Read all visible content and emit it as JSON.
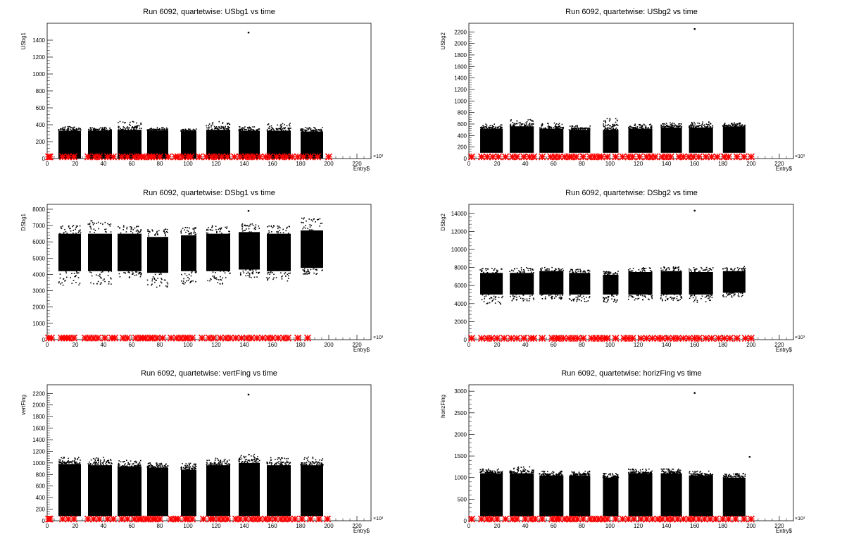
{
  "chart_data": [
    {
      "type": "scatter",
      "title": "Run 6092, quartetwise: USbg1 vs time",
      "ylabel": "USbg1",
      "xlabel": "Entry$",
      "x_multiplier": "×10³",
      "xlim": [
        0,
        230
      ],
      "ylim": [
        0,
        1600
      ],
      "xticks": [
        0,
        20,
        40,
        60,
        80,
        100,
        120,
        140,
        160,
        180,
        200,
        220
      ],
      "yticks": [
        0,
        200,
        400,
        600,
        800,
        1000,
        1200,
        1400
      ],
      "clusters": [
        {
          "x": [
            8,
            24
          ],
          "y": [
            0,
            330
          ],
          "outlier_max": 380
        },
        {
          "x": [
            29,
            46
          ],
          "y": [
            0,
            330
          ],
          "outlier_max": 370
        },
        {
          "x": [
            50,
            67
          ],
          "y": [
            0,
            340
          ],
          "outlier_max": 440
        },
        {
          "x": [
            71,
            86
          ],
          "y": [
            0,
            330
          ],
          "outlier_max": 370
        },
        {
          "x": [
            95,
            106
          ],
          "y": [
            0,
            320
          ],
          "outlier_max": 350
        },
        {
          "x": [
            113,
            130
          ],
          "y": [
            0,
            340
          ],
          "outlier_max": 440
        },
        {
          "x": [
            136,
            151
          ],
          "y": [
            0,
            330
          ],
          "outlier_max": 380
        },
        {
          "x": [
            156,
            173
          ],
          "y": [
            0,
            330
          ],
          "outlier_max": 420
        },
        {
          "x": [
            180,
            196
          ],
          "y": [
            0,
            320
          ],
          "outlier_max": 370
        }
      ],
      "outliers": [
        {
          "x": 143,
          "y": 1490
        }
      ],
      "red_markers_x": [
        1,
        2,
        11,
        15,
        19,
        29,
        34,
        37,
        43,
        47,
        53,
        57,
        62,
        65,
        67,
        69,
        72,
        74,
        76,
        80,
        86,
        91,
        93,
        96,
        100,
        102,
        108,
        113,
        117,
        120,
        124,
        128,
        133,
        137,
        141,
        144,
        147,
        151,
        155,
        158,
        163,
        167,
        170,
        174,
        178,
        182,
        187,
        192,
        200
      ],
      "red_marker_y": 20
    },
    {
      "type": "scatter",
      "title": "Run 6092, quartetwise: USbg2 vs time",
      "ylabel": "USbg2",
      "xlabel": "Entry$",
      "x_multiplier": "×10³",
      "xlim": [
        0,
        230
      ],
      "ylim": [
        0,
        2350
      ],
      "xticks": [
        0,
        20,
        40,
        60,
        80,
        100,
        120,
        140,
        160,
        180,
        200,
        220
      ],
      "yticks": [
        0,
        200,
        400,
        600,
        800,
        1000,
        1200,
        1400,
        1600,
        1800,
        2000,
        2200
      ],
      "clusters": [
        {
          "x": [
            8,
            24
          ],
          "y": [
            100,
            520
          ],
          "outlier_max": 600
        },
        {
          "x": [
            29,
            46
          ],
          "y": [
            100,
            560
          ],
          "outlier_max": 680
        },
        {
          "x": [
            50,
            67
          ],
          "y": [
            100,
            520
          ],
          "outlier_max": 620
        },
        {
          "x": [
            71,
            86
          ],
          "y": [
            100,
            500
          ],
          "outlier_max": 580
        },
        {
          "x": [
            95,
            106
          ],
          "y": [
            100,
            500
          ],
          "outlier_max": 700
        },
        {
          "x": [
            113,
            130
          ],
          "y": [
            100,
            520
          ],
          "outlier_max": 600
        },
        {
          "x": [
            136,
            151
          ],
          "y": [
            100,
            540
          ],
          "outlier_max": 620
        },
        {
          "x": [
            156,
            173
          ],
          "y": [
            100,
            540
          ],
          "outlier_max": 640
        },
        {
          "x": [
            180,
            196
          ],
          "y": [
            100,
            560
          ],
          "outlier_max": 620
        }
      ],
      "outliers": [
        {
          "x": 160,
          "y": 2250
        }
      ],
      "red_markers_x": [
        2,
        9,
        13,
        17,
        21,
        26,
        31,
        34,
        39,
        43,
        46,
        52,
        58,
        61,
        64,
        68,
        71,
        73,
        76,
        81,
        86,
        89,
        92,
        94,
        98,
        104,
        109,
        113,
        116,
        121,
        126,
        129,
        132,
        137,
        140,
        143,
        149,
        152,
        156,
        159,
        163,
        168,
        172,
        176,
        181,
        184,
        190,
        195,
        200
      ],
      "red_marker_y": 30
    },
    {
      "type": "scatter",
      "title": "Run 6092, quartetwise: DSbg1 vs time",
      "ylabel": "DSbg1",
      "xlabel": "Entry$",
      "x_multiplier": "×10³",
      "xlim": [
        0,
        230
      ],
      "ylim": [
        0,
        8300
      ],
      "xticks": [
        0,
        20,
        40,
        60,
        80,
        100,
        120,
        140,
        160,
        180,
        200,
        220
      ],
      "yticks": [
        0,
        1000,
        2000,
        3000,
        4000,
        5000,
        6000,
        7000,
        8000
      ],
      "clusters": [
        {
          "x": [
            8,
            24
          ],
          "y": [
            4200,
            6500
          ],
          "outlier_max": 7000,
          "outlier_min": 3300
        },
        {
          "x": [
            29,
            46
          ],
          "y": [
            4200,
            6500
          ],
          "outlier_max": 7300,
          "outlier_min": 3400
        },
        {
          "x": [
            50,
            67
          ],
          "y": [
            4200,
            6500
          ],
          "outlier_max": 7000,
          "outlier_min": 3800
        },
        {
          "x": [
            71,
            86
          ],
          "y": [
            4100,
            6300
          ],
          "outlier_max": 6800,
          "outlier_min": 3200
        },
        {
          "x": [
            95,
            106
          ],
          "y": [
            4200,
            6400
          ],
          "outlier_max": 6900,
          "outlier_min": 3400
        },
        {
          "x": [
            113,
            130
          ],
          "y": [
            4200,
            6500
          ],
          "outlier_max": 7000,
          "outlier_min": 3400
        },
        {
          "x": [
            136,
            151
          ],
          "y": [
            4300,
            6600
          ],
          "outlier_max": 7100,
          "outlier_min": 3800
        },
        {
          "x": [
            156,
            173
          ],
          "y": [
            4200,
            6500
          ],
          "outlier_max": 7000,
          "outlier_min": 3600
        },
        {
          "x": [
            180,
            196
          ],
          "y": [
            4400,
            6700
          ],
          "outlier_max": 7500,
          "outlier_min": 4000
        }
      ],
      "outliers": [
        {
          "x": 143,
          "y": 7900
        }
      ],
      "red_markers_x": [
        1,
        3,
        10,
        12,
        14,
        16,
        19,
        27,
        30,
        33,
        36,
        41,
        46,
        48,
        54,
        57,
        63,
        66,
        68,
        70,
        73,
        75,
        78,
        82,
        88,
        92,
        95,
        98,
        100,
        103,
        110,
        115,
        118,
        123,
        127,
        130,
        134,
        138,
        142,
        145,
        149,
        153,
        157,
        160,
        164,
        168,
        171,
        178,
        185
      ],
      "red_marker_y": 100
    },
    {
      "type": "scatter",
      "title": "Run 6092, quartetwise: DSbg2 vs time",
      "ylabel": "DSbg2",
      "xlabel": "Entry$",
      "x_multiplier": "×10³",
      "xlim": [
        0,
        230
      ],
      "ylim": [
        0,
        15000
      ],
      "xticks": [
        0,
        20,
        40,
        60,
        80,
        100,
        120,
        140,
        160,
        180,
        200,
        220
      ],
      "yticks": [
        0,
        2000,
        4000,
        6000,
        8000,
        10000,
        12000,
        14000
      ],
      "clusters": [
        {
          "x": [
            8,
            24
          ],
          "y": [
            5000,
            7400
          ],
          "outlier_max": 7900,
          "outlier_min": 3900
        },
        {
          "x": [
            29,
            46
          ],
          "y": [
            5000,
            7400
          ],
          "outlier_max": 8000,
          "outlier_min": 4300
        },
        {
          "x": [
            50,
            67
          ],
          "y": [
            5000,
            7600
          ],
          "outlier_max": 8000,
          "outlier_min": 4500
        },
        {
          "x": [
            71,
            86
          ],
          "y": [
            5000,
            7400
          ],
          "outlier_max": 7800,
          "outlier_min": 4200
        },
        {
          "x": [
            95,
            106
          ],
          "y": [
            5000,
            7200
          ],
          "outlier_max": 7600,
          "outlier_min": 4100
        },
        {
          "x": [
            113,
            130
          ],
          "y": [
            5000,
            7500
          ],
          "outlier_max": 8000,
          "outlier_min": 4400
        },
        {
          "x": [
            136,
            151
          ],
          "y": [
            5000,
            7600
          ],
          "outlier_max": 8100,
          "outlier_min": 4300
        },
        {
          "x": [
            156,
            173
          ],
          "y": [
            5000,
            7500
          ],
          "outlier_max": 8000,
          "outlier_min": 4100
        },
        {
          "x": [
            180,
            196
          ],
          "y": [
            5200,
            7600
          ],
          "outlier_max": 8100,
          "outlier_min": 4700
        }
      ],
      "outliers": [
        {
          "x": 160,
          "y": 14300
        }
      ],
      "red_markers_x": [
        2,
        9,
        13,
        16,
        20,
        25,
        30,
        34,
        39,
        44,
        46,
        52,
        59,
        62,
        64,
        67,
        71,
        74,
        77,
        81,
        87,
        90,
        93,
        96,
        98,
        104,
        110,
        113,
        116,
        122,
        126,
        130,
        134,
        137,
        141,
        145,
        148,
        152,
        156,
        160,
        163,
        168,
        172,
        177,
        181,
        185,
        190,
        196,
        200
      ],
      "red_marker_y": 150
    },
    {
      "type": "scatter",
      "title": "Run 6092, quartetwise: vertFing vs time",
      "ylabel": "vertFing",
      "xlabel": "Entry$",
      "x_multiplier": "×10³",
      "xlim": [
        0,
        230
      ],
      "ylim": [
        0,
        2350
      ],
      "xticks": [
        0,
        20,
        40,
        60,
        80,
        100,
        120,
        140,
        160,
        180,
        200,
        220
      ],
      "yticks": [
        0,
        200,
        400,
        600,
        800,
        1000,
        1200,
        1400,
        1600,
        1800,
        2000,
        2200
      ],
      "clusters": [
        {
          "x": [
            8,
            24
          ],
          "y": [
            80,
            980
          ],
          "outlier_max": 1100
        },
        {
          "x": [
            29,
            46
          ],
          "y": [
            80,
            960
          ],
          "outlier_max": 1100
        },
        {
          "x": [
            50,
            67
          ],
          "y": [
            80,
            940
          ],
          "outlier_max": 1050
        },
        {
          "x": [
            71,
            86
          ],
          "y": [
            80,
            920
          ],
          "outlier_max": 1000
        },
        {
          "x": [
            95,
            106
          ],
          "y": [
            80,
            880
          ],
          "outlier_max": 1000
        },
        {
          "x": [
            113,
            130
          ],
          "y": [
            80,
            960
          ],
          "outlier_max": 1080
        },
        {
          "x": [
            136,
            151
          ],
          "y": [
            80,
            1000
          ],
          "outlier_max": 1150
        },
        {
          "x": [
            156,
            173
          ],
          "y": [
            80,
            960
          ],
          "outlier_max": 1100
        },
        {
          "x": [
            180,
            196
          ],
          "y": [
            80,
            960
          ],
          "outlier_max": 1100
        }
      ],
      "outliers": [
        {
          "x": 143,
          "y": 2180
        }
      ],
      "red_markers_x": [
        1,
        2,
        11,
        15,
        19,
        29,
        33,
        37,
        43,
        47,
        53,
        57,
        62,
        65,
        67,
        70,
        72,
        75,
        77,
        80,
        88,
        91,
        93,
        98,
        100,
        103,
        111,
        116,
        118,
        122,
        125,
        128,
        134,
        137,
        141,
        145,
        148,
        151,
        155,
        158,
        162,
        166,
        169,
        172,
        176,
        181,
        187,
        193,
        199
      ],
      "red_marker_y": 30
    },
    {
      "type": "scatter",
      "title": "Run 6092, quartetwise: horizFing vs time",
      "ylabel": "horizFing",
      "xlabel": "Entry$",
      "x_multiplier": "×10³",
      "xlim": [
        0,
        230
      ],
      "ylim": [
        0,
        3150
      ],
      "xticks": [
        0,
        20,
        40,
        60,
        80,
        100,
        120,
        140,
        160,
        180,
        200,
        220
      ],
      "yticks": [
        0,
        500,
        1000,
        1500,
        2000,
        2500,
        3000
      ],
      "clusters": [
        {
          "x": [
            8,
            24
          ],
          "y": [
            100,
            1100
          ],
          "outlier_max": 1200
        },
        {
          "x": [
            29,
            46
          ],
          "y": [
            100,
            1100
          ],
          "outlier_max": 1250
        },
        {
          "x": [
            50,
            67
          ],
          "y": [
            100,
            1050
          ],
          "outlier_max": 1150
        },
        {
          "x": [
            71,
            86
          ],
          "y": [
            100,
            1050
          ],
          "outlier_max": 1150
        },
        {
          "x": [
            95,
            106
          ],
          "y": [
            100,
            1000
          ],
          "outlier_max": 1100
        },
        {
          "x": [
            113,
            130
          ],
          "y": [
            100,
            1100
          ],
          "outlier_max": 1200
        },
        {
          "x": [
            136,
            151
          ],
          "y": [
            100,
            1100
          ],
          "outlier_max": 1200
        },
        {
          "x": [
            156,
            173
          ],
          "y": [
            100,
            1050
          ],
          "outlier_max": 1150
        },
        {
          "x": [
            180,
            196
          ],
          "y": [
            100,
            1000
          ],
          "outlier_max": 1100
        }
      ],
      "outliers": [
        {
          "x": 160,
          "y": 2960
        },
        {
          "x": 199,
          "y": 1480
        }
      ],
      "red_markers_x": [
        2,
        9,
        13,
        16,
        20,
        26,
        31,
        34,
        40,
        44,
        47,
        52,
        59,
        62,
        64,
        68,
        71,
        74,
        77,
        81,
        86,
        89,
        92,
        95,
        98,
        104,
        109,
        113,
        117,
        122,
        126,
        130,
        134,
        137,
        141,
        144,
        148,
        152,
        156,
        159,
        163,
        167,
        171,
        175,
        180,
        184,
        189,
        195,
        200
      ],
      "red_marker_y": 40
    }
  ]
}
